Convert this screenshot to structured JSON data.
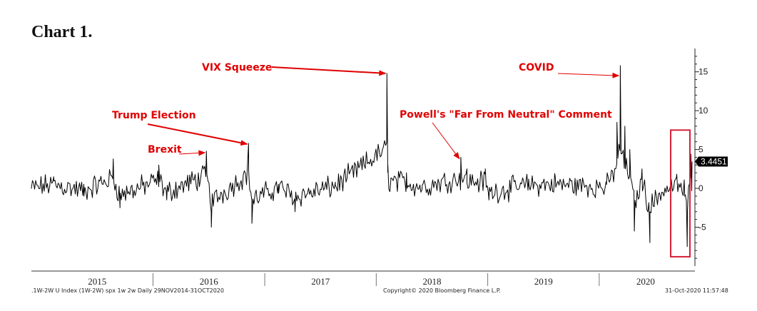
{
  "page": {
    "title": "Chart 1.",
    "footer_left": ".1W-2W U Index (1W-2W) spx 1w 2w  Daily 29NOV2014-31OCT2020",
    "footer_center": "Copyright© 2020 Bloomberg Finance L.P.",
    "footer_right": "31-Oct-2020 11:57:48"
  },
  "chart_data": {
    "type": "line",
    "x_range": [
      "2014-11-29",
      "2020-10-31"
    ],
    "ylim": [
      -10,
      18
    ],
    "yticks": [
      -5,
      0,
      5,
      10,
      15
    ],
    "year_labels": [
      "2015",
      "2016",
      "2017",
      "2018",
      "2019",
      "2020"
    ],
    "last_value": "3.4451",
    "line_color": "#000000",
    "annotation_color": "#e00000",
    "anchors": [
      {
        "x": "2014-11-29",
        "y": 0
      },
      {
        "x": "2015-02-10",
        "y": 1.5
      },
      {
        "x": "2015-05-20",
        "y": -1
      },
      {
        "x": "2015-08-24",
        "y": 3.8
      },
      {
        "x": "2015-09-15",
        "y": -2.5
      },
      {
        "x": "2016-01-20",
        "y": 3
      },
      {
        "x": "2016-02-15",
        "y": -1.5
      },
      {
        "x": "2016-06-24",
        "y": 4.8
      },
      {
        "x": "2016-07-10",
        "y": -5
      },
      {
        "x": "2016-11-09",
        "y": 5.8
      },
      {
        "x": "2016-11-20",
        "y": -4.5
      },
      {
        "x": "2017-02-15",
        "y": 0.5
      },
      {
        "x": "2017-04-10",
        "y": -3
      },
      {
        "x": "2017-08-20",
        "y": 0.8
      },
      {
        "x": "2018-02-05",
        "y": 14.8
      },
      {
        "x": "2018-02-08",
        "y": 3
      },
      {
        "x": "2018-04-10",
        "y": 2
      },
      {
        "x": "2018-06-01",
        "y": 0.5
      },
      {
        "x": "2018-10-05",
        "y": 4
      },
      {
        "x": "2018-10-25",
        "y": 2.5
      },
      {
        "x": "2018-12-24",
        "y": 2.5
      },
      {
        "x": "2019-01-05",
        "y": -1.5
      },
      {
        "x": "2019-05-15",
        "y": 1.2
      },
      {
        "x": "2019-08-10",
        "y": 1.5
      },
      {
        "x": "2020-01-25",
        "y": 0.5
      },
      {
        "x": "2020-02-28",
        "y": 8.5
      },
      {
        "x": "2020-03-10",
        "y": 15.8
      },
      {
        "x": "2020-03-25",
        "y": 8
      },
      {
        "x": "2020-04-10",
        "y": 5
      },
      {
        "x": "2020-04-25",
        "y": -5.5
      },
      {
        "x": "2020-05-20",
        "y": 2.5
      },
      {
        "x": "2020-06-15",
        "y": -7
      },
      {
        "x": "2020-07-20",
        "y": -1.5
      },
      {
        "x": "2020-09-10",
        "y": 1.5
      },
      {
        "x": "2020-10-07",
        "y": -1
      },
      {
        "x": "2020-10-15",
        "y": -7.5
      },
      {
        "x": "2020-10-27",
        "y": 4.4
      },
      {
        "x": "2020-10-31",
        "y": 3.4451
      }
    ],
    "annotations": [
      {
        "text": "Brexit",
        "date": "2016-06-24",
        "y": 4.6
      },
      {
        "text": "Trump Election",
        "date": "2016-11-09",
        "y": 5.7
      },
      {
        "text": "VIX Squeeze",
        "date": "2018-02-05",
        "y": 14.8
      },
      {
        "text": "Powell's \"Far From Neutral\" Comment",
        "date": "2018-10-05",
        "y": 3.8
      },
      {
        "text": "COVID",
        "date": "2020-03-10",
        "y": 14.5
      }
    ],
    "highlight_box": {
      "from": "2020-09-05",
      "to": "2020-10-31",
      "y_from": -8.8,
      "y_to": 7.5,
      "color": "#d62035"
    }
  }
}
